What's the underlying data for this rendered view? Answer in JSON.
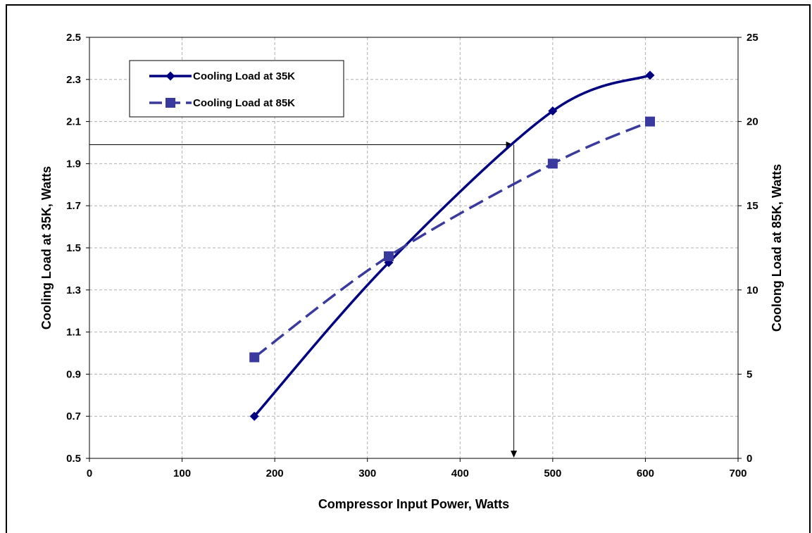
{
  "chart_data": {
    "type": "line",
    "title": "",
    "xlabel": "Compressor Input Power, Watts",
    "ylabel_left": "Cooling Load at 35K, Watts",
    "ylabel_right": "Coolong Load at 85K, Watts",
    "xlim": [
      0,
      700
    ],
    "ylim_left": [
      0.5,
      2.5
    ],
    "ylim_right": [
      0,
      25
    ],
    "x_ticks": [
      0,
      100,
      200,
      300,
      400,
      500,
      600,
      700
    ],
    "y_left_ticks": [
      "0.5",
      "0.7",
      "0.9",
      "1.1",
      "1.3",
      "1.5",
      "1.7",
      "1.9",
      "2.1",
      "2.3",
      "2.5"
    ],
    "y_right_ticks": [
      "0",
      "5",
      "10",
      "15",
      "20",
      "25"
    ],
    "grid": true,
    "legend_position": "top-left",
    "series": [
      {
        "name": "Cooling Load at 35K",
        "axis": "left",
        "color": "#000080",
        "marker": "diamond",
        "line_style": "solid",
        "x": [
          178,
          323,
          500,
          605
        ],
        "y": [
          0.7,
          1.43,
          2.15,
          2.32
        ]
      },
      {
        "name": "Cooling Load at 85K",
        "axis": "right",
        "color": "#3a3a9e",
        "marker": "square",
        "line_style": "dashed",
        "x": [
          178,
          323,
          500,
          605
        ],
        "y": [
          6.0,
          12.0,
          17.5,
          20.0
        ]
      }
    ],
    "annotation": {
      "description": "reference lines",
      "y_left": 1.99,
      "x": 458
    }
  }
}
